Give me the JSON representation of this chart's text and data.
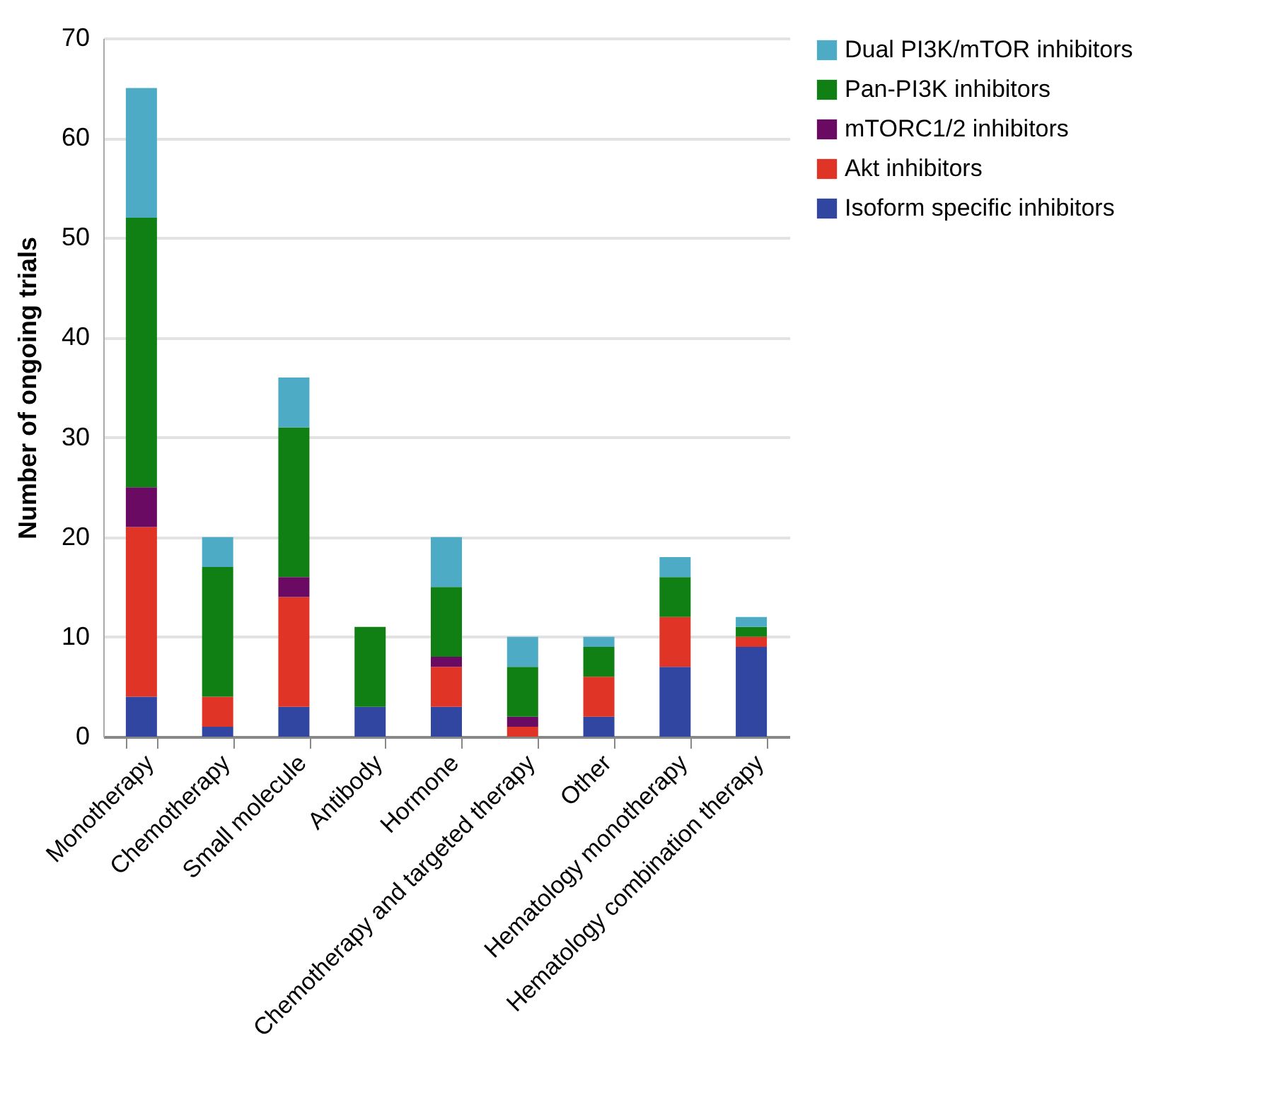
{
  "chart_data": {
    "type": "bar",
    "stacked": true,
    "ylabel": "Number of ongoing trials",
    "categories": [
      "Monotherapy",
      "Chemotherapy",
      "Small molecule",
      "Antibody",
      "Hormone",
      "Chemotherapy and targeted therapy",
      "Other",
      "Hematology monotherapy",
      "Hematology combination therapy"
    ],
    "series": [
      {
        "name": "Isoform specific inhibitors",
        "color": "#3046a0",
        "values": [
          4,
          1,
          3,
          3,
          3,
          0,
          2,
          7,
          9
        ]
      },
      {
        "name": "Akt inhibitors",
        "color": "#e03426",
        "values": [
          17,
          3,
          11,
          0,
          4,
          1,
          4,
          5,
          1
        ]
      },
      {
        "name": "mTORC1/2 inhibitors",
        "color": "#6a0a62",
        "values": [
          4,
          0,
          2,
          0,
          1,
          1,
          0,
          0,
          0
        ]
      },
      {
        "name": "Pan-PI3K inhibitors",
        "color": "#118014",
        "values": [
          27,
          13,
          15,
          8,
          7,
          5,
          3,
          4,
          1
        ]
      },
      {
        "name": "Dual PI3K/mTOR inhibitors",
        "color": "#4eabc6",
        "values": [
          13,
          3,
          5,
          0,
          5,
          3,
          1,
          2,
          1
        ]
      }
    ],
    "ylim": [
      0,
      70
    ],
    "yticks": [
      0,
      10,
      20,
      30,
      40,
      50,
      60,
      70
    ],
    "grid": "y",
    "legend": "right"
  }
}
